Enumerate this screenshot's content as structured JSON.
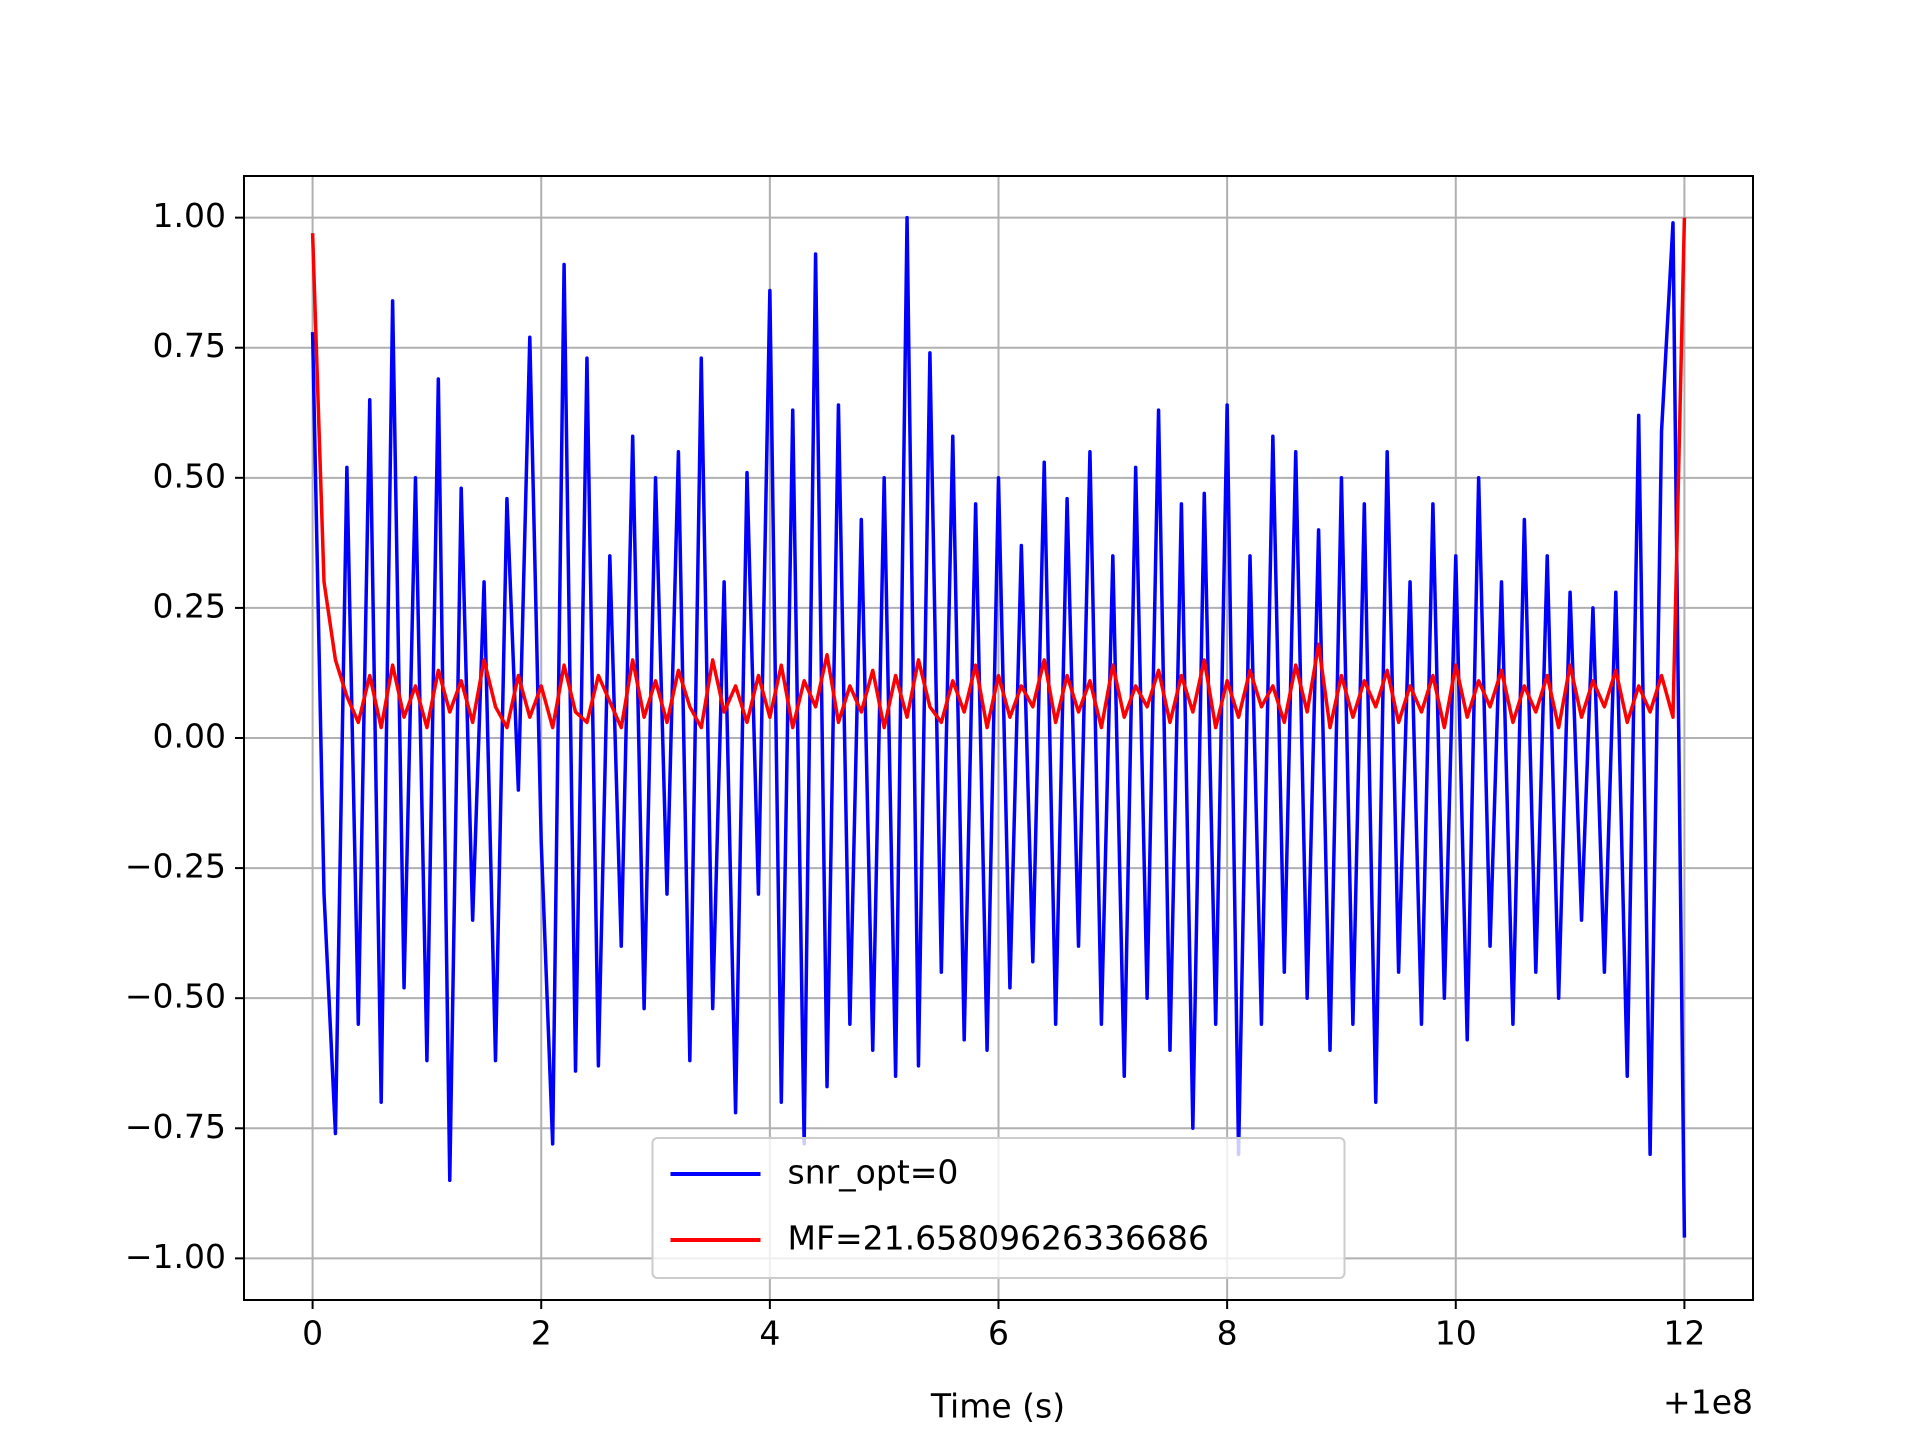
{
  "chart_data": {
    "type": "line",
    "x_label": "Time (s)",
    "x_offset_label": "+1e8",
    "xlim": [
      -0.6,
      12.6
    ],
    "ylim": [
      -1.08,
      1.08
    ],
    "xticks": [
      0,
      2,
      4,
      6,
      8,
      10,
      12
    ],
    "yticks": [
      {
        "value": -1,
        "label": "−1.00"
      },
      {
        "value": -0.75,
        "label": "−0.75"
      },
      {
        "value": -0.5,
        "label": "−0.50"
      },
      {
        "value": -0.25,
        "label": "−0.25"
      },
      {
        "value": 0,
        "label": "0.00"
      },
      {
        "value": 0.25,
        "label": "0.25"
      },
      {
        "value": 0.5,
        "label": "0.50"
      },
      {
        "value": 0.75,
        "label": "0.75"
      },
      {
        "value": 1,
        "label": "1.00"
      }
    ],
    "grid": true,
    "legend": "lower center",
    "x": [
      0,
      0.1,
      0.2,
      0.3,
      0.4,
      0.5,
      0.6,
      0.7,
      0.8,
      0.9,
      1,
      1.1,
      1.2,
      1.3,
      1.4,
      1.5,
      1.6,
      1.7,
      1.8,
      1.9,
      2,
      2.1,
      2.2,
      2.3,
      2.4,
      2.5,
      2.6,
      2.7,
      2.8,
      2.9,
      3,
      3.1,
      3.2,
      3.3,
      3.4,
      3.5,
      3.6,
      3.7,
      3.8,
      3.9,
      4,
      4.1,
      4.2,
      4.3,
      4.4,
      4.5,
      4.6,
      4.7,
      4.8,
      4.9,
      5,
      5.1,
      5.2,
      5.3,
      5.4,
      5.5,
      5.6,
      5.7,
      5.8,
      5.9,
      6,
      6.1,
      6.2,
      6.3,
      6.4,
      6.5,
      6.6,
      6.7,
      6.8,
      6.9,
      7,
      7.1,
      7.2,
      7.3,
      7.4,
      7.5,
      7.6,
      7.7,
      7.8,
      7.9,
      8,
      8.1,
      8.2,
      8.3,
      8.4,
      8.5,
      8.6,
      8.7,
      8.8,
      8.9,
      9,
      9.1,
      9.2,
      9.3,
      9.4,
      9.5,
      9.6,
      9.7,
      9.8,
      9.9,
      10,
      10.1,
      10.2,
      10.3,
      10.4,
      10.5,
      10.6,
      10.7,
      10.8,
      10.9,
      11,
      11.1,
      11.2,
      11.3,
      11.4,
      11.5,
      11.6,
      11.7,
      11.8,
      11.9,
      12
    ],
    "series": [
      {
        "name": "snr_opt=0",
        "color": "#0000ff",
        "values": [
          0.78,
          -0.3,
          -0.76,
          0.52,
          -0.55,
          0.65,
          -0.7,
          0.84,
          -0.48,
          0.5,
          -0.62,
          0.69,
          -0.85,
          0.48,
          -0.35,
          0.3,
          -0.62,
          0.46,
          -0.1,
          0.77,
          -0.2,
          -0.78,
          0.91,
          -0.64,
          0.73,
          -0.63,
          0.35,
          -0.4,
          0.58,
          -0.52,
          0.5,
          -0.3,
          0.55,
          -0.62,
          0.73,
          -0.52,
          0.3,
          -0.72,
          0.51,
          -0.3,
          0.86,
          -0.7,
          0.63,
          -0.78,
          0.93,
          -0.67,
          0.64,
          -0.55,
          0.42,
          -0.6,
          0.5,
          -0.65,
          1.0,
          -0.63,
          0.74,
          -0.45,
          0.58,
          -0.58,
          0.45,
          -0.6,
          0.5,
          -0.48,
          0.37,
          -0.43,
          0.53,
          -0.55,
          0.46,
          -0.4,
          0.55,
          -0.55,
          0.35,
          -0.65,
          0.52,
          -0.5,
          0.63,
          -0.6,
          0.45,
          -0.75,
          0.47,
          -0.55,
          0.64,
          -0.8,
          0.35,
          -0.55,
          0.58,
          -0.45,
          0.55,
          -0.5,
          0.4,
          -0.6,
          0.5,
          -0.55,
          0.45,
          -0.7,
          0.55,
          -0.45,
          0.3,
          -0.55,
          0.45,
          -0.5,
          0.35,
          -0.58,
          0.5,
          -0.4,
          0.3,
          -0.55,
          0.42,
          -0.45,
          0.35,
          -0.5,
          0.28,
          -0.35,
          0.25,
          -0.45,
          0.28,
          -0.65,
          0.62,
          -0.8,
          0.59,
          0.99,
          -0.96
        ]
      },
      {
        "name": "MF=21.65809626336686",
        "color": "#ff0000",
        "values": [
          0.97,
          0.3,
          0.15,
          0.08,
          0.03,
          0.12,
          0.02,
          0.14,
          0.04,
          0.1,
          0.02,
          0.13,
          0.05,
          0.11,
          0.03,
          0.15,
          0.06,
          0.02,
          0.12,
          0.04,
          0.1,
          0.02,
          0.14,
          0.05,
          0.03,
          0.12,
          0.07,
          0.02,
          0.15,
          0.04,
          0.11,
          0.03,
          0.13,
          0.06,
          0.02,
          0.15,
          0.05,
          0.1,
          0.03,
          0.12,
          0.04,
          0.14,
          0.02,
          0.11,
          0.06,
          0.16,
          0.03,
          0.1,
          0.05,
          0.13,
          0.02,
          0.12,
          0.04,
          0.15,
          0.06,
          0.03,
          0.11,
          0.05,
          0.14,
          0.02,
          0.12,
          0.04,
          0.1,
          0.06,
          0.15,
          0.03,
          0.12,
          0.05,
          0.11,
          0.02,
          0.14,
          0.04,
          0.1,
          0.06,
          0.13,
          0.03,
          0.12,
          0.05,
          0.15,
          0.02,
          0.11,
          0.04,
          0.13,
          0.06,
          0.1,
          0.03,
          0.14,
          0.05,
          0.18,
          0.02,
          0.12,
          0.04,
          0.11,
          0.06,
          0.13,
          0.03,
          0.1,
          0.05,
          0.12,
          0.02,
          0.14,
          0.04,
          0.11,
          0.06,
          0.13,
          0.03,
          0.1,
          0.05,
          0.12,
          0.02,
          0.14,
          0.04,
          0.11,
          0.06,
          0.13,
          0.03,
          0.1,
          0.05,
          0.12,
          0.04,
          1.0
        ]
      }
    ]
  }
}
